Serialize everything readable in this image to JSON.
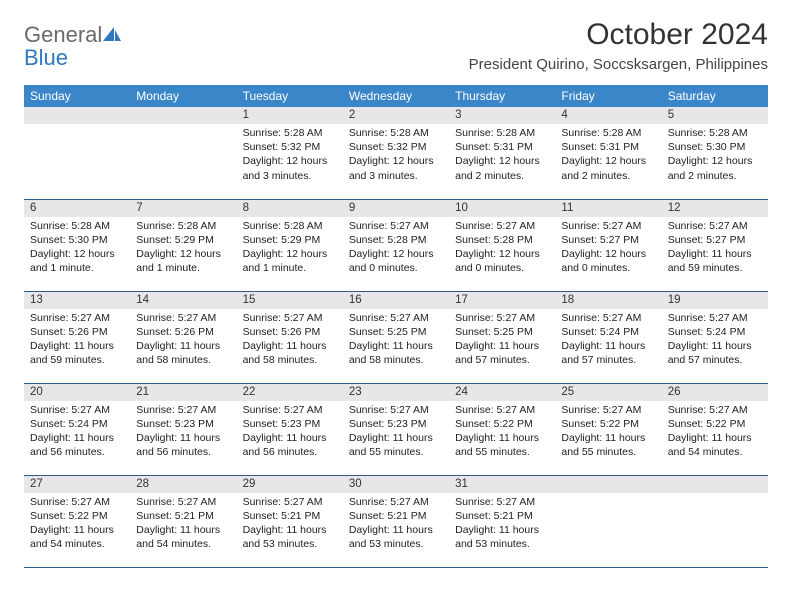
{
  "brand": {
    "general": "General",
    "blue": "Blue"
  },
  "title": "October 2024",
  "location": "President Quirino, Soccsksargen, Philippines",
  "colors": {
    "header_bg": "#3b86c8",
    "header_fg": "#ffffff",
    "daynum_bg": "#e7e7e7",
    "row_border": "#2f5b85",
    "logo_gray": "#6a6a6a",
    "logo_blue": "#2f78bf",
    "page_bg": "#ffffff",
    "text": "#222222"
  },
  "weekdays": [
    "Sunday",
    "Monday",
    "Tuesday",
    "Wednesday",
    "Thursday",
    "Friday",
    "Saturday"
  ],
  "weeks": [
    [
      {
        "n": "",
        "sr": "",
        "ss": "",
        "dl": ""
      },
      {
        "n": "",
        "sr": "",
        "ss": "",
        "dl": ""
      },
      {
        "n": "1",
        "sr": "Sunrise: 5:28 AM",
        "ss": "Sunset: 5:32 PM",
        "dl": "Daylight: 12 hours and 3 minutes."
      },
      {
        "n": "2",
        "sr": "Sunrise: 5:28 AM",
        "ss": "Sunset: 5:32 PM",
        "dl": "Daylight: 12 hours and 3 minutes."
      },
      {
        "n": "3",
        "sr": "Sunrise: 5:28 AM",
        "ss": "Sunset: 5:31 PM",
        "dl": "Daylight: 12 hours and 2 minutes."
      },
      {
        "n": "4",
        "sr": "Sunrise: 5:28 AM",
        "ss": "Sunset: 5:31 PM",
        "dl": "Daylight: 12 hours and 2 minutes."
      },
      {
        "n": "5",
        "sr": "Sunrise: 5:28 AM",
        "ss": "Sunset: 5:30 PM",
        "dl": "Daylight: 12 hours and 2 minutes."
      }
    ],
    [
      {
        "n": "6",
        "sr": "Sunrise: 5:28 AM",
        "ss": "Sunset: 5:30 PM",
        "dl": "Daylight: 12 hours and 1 minute."
      },
      {
        "n": "7",
        "sr": "Sunrise: 5:28 AM",
        "ss": "Sunset: 5:29 PM",
        "dl": "Daylight: 12 hours and 1 minute."
      },
      {
        "n": "8",
        "sr": "Sunrise: 5:28 AM",
        "ss": "Sunset: 5:29 PM",
        "dl": "Daylight: 12 hours and 1 minute."
      },
      {
        "n": "9",
        "sr": "Sunrise: 5:27 AM",
        "ss": "Sunset: 5:28 PM",
        "dl": "Daylight: 12 hours and 0 minutes."
      },
      {
        "n": "10",
        "sr": "Sunrise: 5:27 AM",
        "ss": "Sunset: 5:28 PM",
        "dl": "Daylight: 12 hours and 0 minutes."
      },
      {
        "n": "11",
        "sr": "Sunrise: 5:27 AM",
        "ss": "Sunset: 5:27 PM",
        "dl": "Daylight: 12 hours and 0 minutes."
      },
      {
        "n": "12",
        "sr": "Sunrise: 5:27 AM",
        "ss": "Sunset: 5:27 PM",
        "dl": "Daylight: 11 hours and 59 minutes."
      }
    ],
    [
      {
        "n": "13",
        "sr": "Sunrise: 5:27 AM",
        "ss": "Sunset: 5:26 PM",
        "dl": "Daylight: 11 hours and 59 minutes."
      },
      {
        "n": "14",
        "sr": "Sunrise: 5:27 AM",
        "ss": "Sunset: 5:26 PM",
        "dl": "Daylight: 11 hours and 58 minutes."
      },
      {
        "n": "15",
        "sr": "Sunrise: 5:27 AM",
        "ss": "Sunset: 5:26 PM",
        "dl": "Daylight: 11 hours and 58 minutes."
      },
      {
        "n": "16",
        "sr": "Sunrise: 5:27 AM",
        "ss": "Sunset: 5:25 PM",
        "dl": "Daylight: 11 hours and 58 minutes."
      },
      {
        "n": "17",
        "sr": "Sunrise: 5:27 AM",
        "ss": "Sunset: 5:25 PM",
        "dl": "Daylight: 11 hours and 57 minutes."
      },
      {
        "n": "18",
        "sr": "Sunrise: 5:27 AM",
        "ss": "Sunset: 5:24 PM",
        "dl": "Daylight: 11 hours and 57 minutes."
      },
      {
        "n": "19",
        "sr": "Sunrise: 5:27 AM",
        "ss": "Sunset: 5:24 PM",
        "dl": "Daylight: 11 hours and 57 minutes."
      }
    ],
    [
      {
        "n": "20",
        "sr": "Sunrise: 5:27 AM",
        "ss": "Sunset: 5:24 PM",
        "dl": "Daylight: 11 hours and 56 minutes."
      },
      {
        "n": "21",
        "sr": "Sunrise: 5:27 AM",
        "ss": "Sunset: 5:23 PM",
        "dl": "Daylight: 11 hours and 56 minutes."
      },
      {
        "n": "22",
        "sr": "Sunrise: 5:27 AM",
        "ss": "Sunset: 5:23 PM",
        "dl": "Daylight: 11 hours and 56 minutes."
      },
      {
        "n": "23",
        "sr": "Sunrise: 5:27 AM",
        "ss": "Sunset: 5:23 PM",
        "dl": "Daylight: 11 hours and 55 minutes."
      },
      {
        "n": "24",
        "sr": "Sunrise: 5:27 AM",
        "ss": "Sunset: 5:22 PM",
        "dl": "Daylight: 11 hours and 55 minutes."
      },
      {
        "n": "25",
        "sr": "Sunrise: 5:27 AM",
        "ss": "Sunset: 5:22 PM",
        "dl": "Daylight: 11 hours and 55 minutes."
      },
      {
        "n": "26",
        "sr": "Sunrise: 5:27 AM",
        "ss": "Sunset: 5:22 PM",
        "dl": "Daylight: 11 hours and 54 minutes."
      }
    ],
    [
      {
        "n": "27",
        "sr": "Sunrise: 5:27 AM",
        "ss": "Sunset: 5:22 PM",
        "dl": "Daylight: 11 hours and 54 minutes."
      },
      {
        "n": "28",
        "sr": "Sunrise: 5:27 AM",
        "ss": "Sunset: 5:21 PM",
        "dl": "Daylight: 11 hours and 54 minutes."
      },
      {
        "n": "29",
        "sr": "Sunrise: 5:27 AM",
        "ss": "Sunset: 5:21 PM",
        "dl": "Daylight: 11 hours and 53 minutes."
      },
      {
        "n": "30",
        "sr": "Sunrise: 5:27 AM",
        "ss": "Sunset: 5:21 PM",
        "dl": "Daylight: 11 hours and 53 minutes."
      },
      {
        "n": "31",
        "sr": "Sunrise: 5:27 AM",
        "ss": "Sunset: 5:21 PM",
        "dl": "Daylight: 11 hours and 53 minutes."
      },
      {
        "n": "",
        "sr": "",
        "ss": "",
        "dl": ""
      },
      {
        "n": "",
        "sr": "",
        "ss": "",
        "dl": ""
      }
    ]
  ]
}
